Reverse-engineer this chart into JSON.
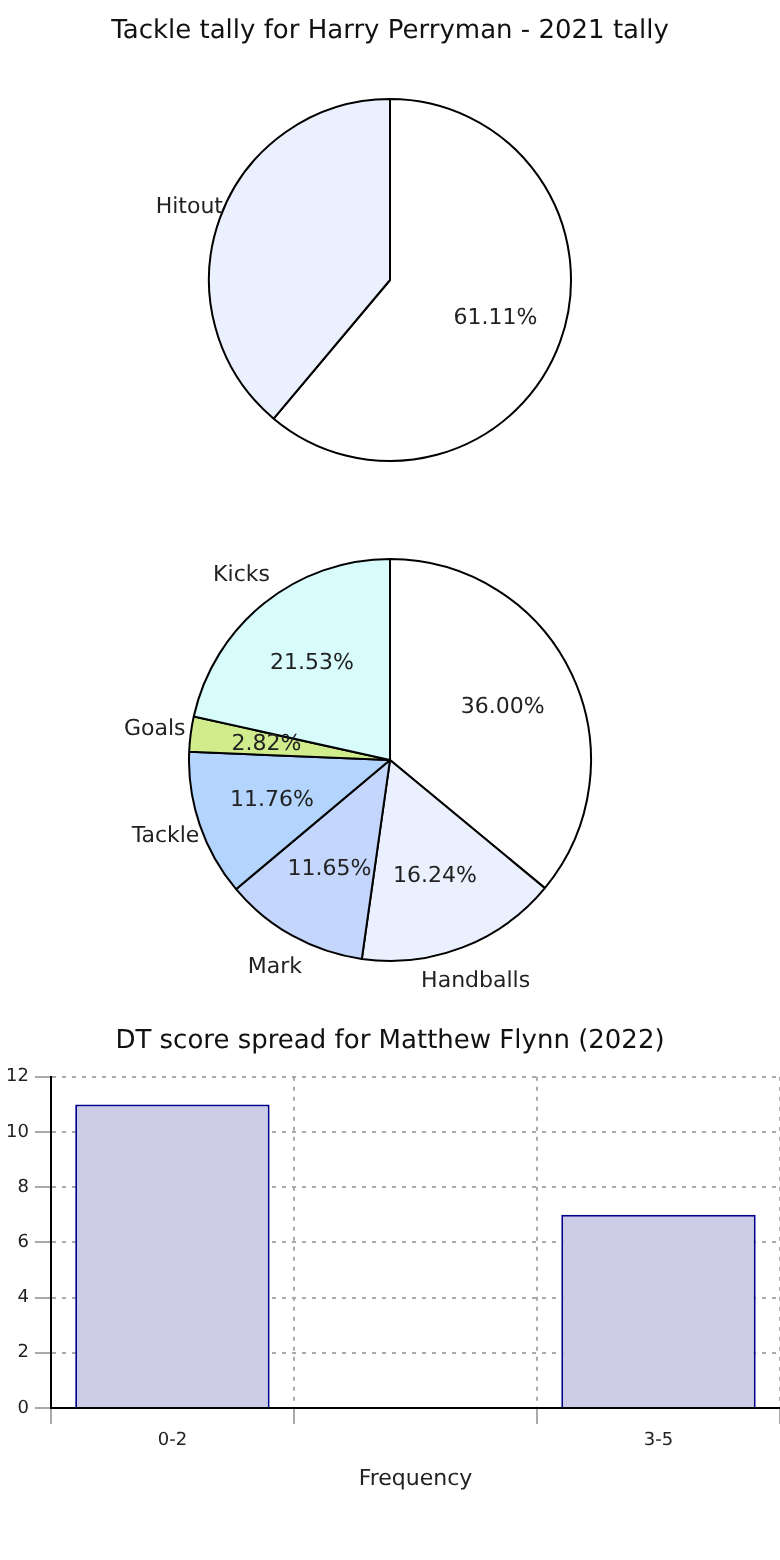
{
  "chart_data": [
    {
      "type": "pie",
      "title": "Tackle tally for Harry Perryman - 2021 tally",
      "categories": [
        null,
        "Hitout"
      ],
      "values": [
        61.11,
        38.89
      ],
      "colors": [
        "#ffffff",
        "#eaf0fe"
      ],
      "value_labels": [
        "61.11%",
        null
      ]
    },
    {
      "type": "pie",
      "categories": [
        null,
        "Handballs",
        "Mark",
        "Tackle",
        "Goals",
        "Kicks"
      ],
      "values": [
        36.0,
        16.24,
        11.65,
        11.76,
        2.82,
        21.53
      ],
      "colors": [
        "#ffffff",
        "#eaf0fe",
        "#c4d6fc",
        "#b3d4fc",
        "#d0ec8c",
        "#d8fcfc"
      ],
      "value_labels": [
        "36.00%",
        "16.24%",
        "11.65%",
        "11.76%",
        "2.82%",
        "21.53%"
      ]
    },
    {
      "type": "bar",
      "title": "DT score spread for Matthew Flynn (2022)",
      "xlabel": "Frequency",
      "categories": [
        "0-2",
        null,
        "3-5"
      ],
      "values": [
        11,
        null,
        7
      ],
      "color": "#cccce6",
      "ylim": [
        0,
        12
      ],
      "yticks": [
        0,
        2,
        4,
        6,
        8,
        10,
        12
      ],
      "grid": true
    }
  ]
}
